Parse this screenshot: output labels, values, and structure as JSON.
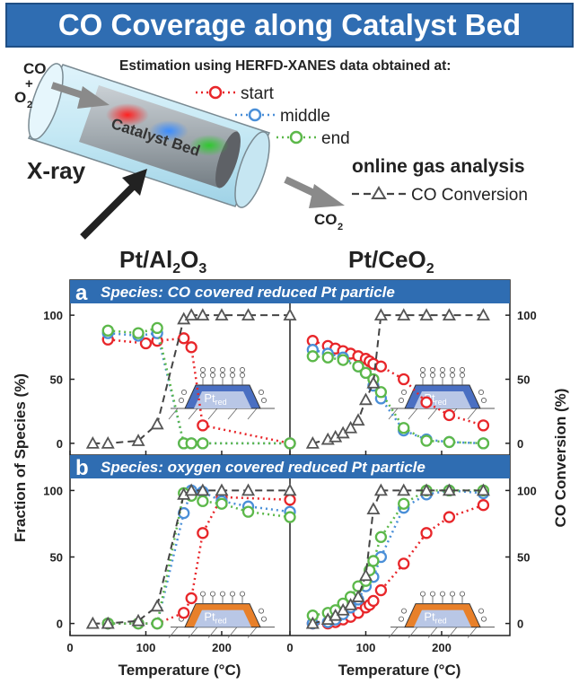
{
  "header": {
    "title": "CO Coverage along Catalyst Bed"
  },
  "schematic": {
    "estimation_text": "Estimation using HERFD-XANES data obtained at:",
    "legend_items": [
      "start",
      "middle",
      "end"
    ],
    "online_gas_analysis": "online gas analysis",
    "co_conversion_label": "CO Conversion",
    "catalyst_bed_label": "Catalyst Bed",
    "xray_label": "X-ray",
    "inlet_label_1": "CO",
    "inlet_label_2": "O",
    "inlet_label_2_sub": "2",
    "inlet_plus": "+",
    "outlet_label": "CO",
    "outlet_label_sub": "2"
  },
  "columns": {
    "left_title": {
      "main": "Pt/Al",
      "sub1": "2",
      "mid": "O",
      "sub2": "3"
    },
    "right_title": {
      "main": "Pt/CeO",
      "sub1": "2"
    }
  },
  "panels": {
    "a": {
      "letter": "a",
      "title": "Species: CO covered reduced Pt particle"
    },
    "b": {
      "letter": "b",
      "title": "Species: oxygen covered reduced Pt particle"
    }
  },
  "axes": {
    "ylabel_left": "Fraction of Species (%)",
    "ylabel_right": "CO Conversion (%)",
    "xlabel": "Temperature (°C)",
    "xticks": [
      "0",
      "100",
      "200"
    ],
    "yticks": [
      "0",
      "50",
      "100"
    ],
    "inset_label": "Pt",
    "inset_sub": "red"
  },
  "colors": {
    "start": "#e8262a",
    "middle": "#4a8fd8",
    "end": "#5cb84a",
    "conversion": "#444444",
    "banner": "#2f6db2",
    "inset_a": "#4a6fc2",
    "inset_b": "#e8802a"
  },
  "chart_data": [
    {
      "type": "line",
      "panel": "a",
      "catalyst": "Pt/Al2O3",
      "xlim": [
        0,
        290
      ],
      "ylim": [
        -5,
        105
      ],
      "series": [
        {
          "name": "start",
          "x": [
            50,
            100,
            115,
            150,
            160,
            175,
            290
          ],
          "y": [
            81,
            78,
            80,
            82,
            75,
            14,
            0
          ]
        },
        {
          "name": "middle",
          "x": [
            50,
            90,
            115,
            150,
            160,
            175,
            290
          ],
          "y": [
            86,
            84,
            86,
            0,
            0,
            0,
            0
          ]
        },
        {
          "name": "end",
          "x": [
            50,
            90,
            115,
            150,
            160,
            175,
            290
          ],
          "y": [
            88,
            86,
            90,
            0,
            0,
            0,
            0
          ]
        },
        {
          "name": "CO Conversion",
          "x": [
            30,
            50,
            90,
            115,
            150,
            160,
            175,
            200,
            235,
            290
          ],
          "y": [
            0,
            0,
            2,
            15,
            97,
            100,
            100,
            100,
            100,
            100
          ]
        }
      ]
    },
    {
      "type": "line",
      "panel": "a",
      "catalyst": "Pt/CeO2",
      "xlim": [
        0,
        290
      ],
      "ylim": [
        -5,
        105
      ],
      "series": [
        {
          "name": "start",
          "x": [
            30,
            50,
            60,
            70,
            80,
            90,
            100,
            105,
            110,
            120,
            150,
            180,
            210,
            255
          ],
          "y": [
            80,
            76,
            74,
            72,
            70,
            68,
            66,
            64,
            62,
            60,
            50,
            32,
            22,
            14
          ]
        },
        {
          "name": "middle",
          "x": [
            30,
            50,
            70,
            90,
            100,
            110,
            120,
            150,
            180,
            210,
            255
          ],
          "y": [
            73,
            70,
            67,
            60,
            55,
            45,
            35,
            10,
            3,
            1,
            0
          ]
        },
        {
          "name": "end",
          "x": [
            30,
            50,
            70,
            90,
            100,
            110,
            120,
            150,
            180,
            210,
            255
          ],
          "y": [
            68,
            67,
            65,
            60,
            55,
            50,
            40,
            12,
            2,
            1,
            0
          ]
        },
        {
          "name": "CO Conversion",
          "x": [
            30,
            50,
            60,
            70,
            80,
            90,
            100,
            110,
            120,
            150,
            180,
            210,
            255
          ],
          "y": [
            0,
            3,
            5,
            8,
            12,
            18,
            34,
            47,
            100,
            100,
            100,
            100,
            100
          ]
        }
      ]
    },
    {
      "type": "line",
      "panel": "b",
      "catalyst": "Pt/Al2O3",
      "xlim": [
        0,
        290
      ],
      "ylim": [
        -5,
        105
      ],
      "series": [
        {
          "name": "start",
          "x": [
            50,
            90,
            115,
            150,
            160,
            175,
            200,
            290
          ],
          "y": [
            0,
            0,
            0,
            8,
            19,
            68,
            95,
            93
          ]
        },
        {
          "name": "middle",
          "x": [
            50,
            90,
            115,
            150,
            160,
            175,
            200,
            235,
            290
          ],
          "y": [
            0,
            0,
            0,
            83,
            100,
            99,
            92,
            88,
            84
          ]
        },
        {
          "name": "end",
          "x": [
            50,
            90,
            115,
            150,
            160,
            175,
            200,
            235,
            290
          ],
          "y": [
            0,
            0,
            0,
            98,
            96,
            92,
            90,
            84,
            80
          ]
        },
        {
          "name": "CO Conversion",
          "x": [
            30,
            50,
            90,
            115,
            150,
            160,
            175,
            200,
            235,
            290
          ],
          "y": [
            0,
            0,
            2,
            13,
            97,
            100,
            100,
            100,
            100,
            100
          ]
        }
      ]
    },
    {
      "type": "line",
      "panel": "b",
      "catalyst": "Pt/CeO2",
      "xlim": [
        0,
        290
      ],
      "ylim": [
        -5,
        105
      ],
      "series": [
        {
          "name": "start",
          "x": [
            30,
            50,
            60,
            70,
            80,
            90,
            100,
            105,
            110,
            120,
            150,
            180,
            210,
            255
          ],
          "y": [
            0,
            0,
            1,
            3,
            5,
            8,
            12,
            14,
            17,
            25,
            45,
            68,
            80,
            89
          ]
        },
        {
          "name": "middle",
          "x": [
            30,
            50,
            60,
            70,
            80,
            90,
            100,
            110,
            120,
            150,
            180,
            210,
            255
          ],
          "y": [
            0,
            1,
            3,
            7,
            12,
            18,
            28,
            35,
            50,
            87,
            97,
            100,
            98
          ]
        },
        {
          "name": "end",
          "x": [
            30,
            50,
            60,
            70,
            80,
            90,
            100,
            105,
            110,
            120,
            150,
            180,
            210,
            255
          ],
          "y": [
            6,
            8,
            10,
            15,
            20,
            28,
            32,
            40,
            47,
            65,
            90,
            100,
            100,
            100
          ]
        },
        {
          "name": "CO Conversion",
          "x": [
            30,
            50,
            60,
            70,
            80,
            90,
            100,
            110,
            120,
            150,
            180,
            210,
            255
          ],
          "y": [
            0,
            3,
            6,
            10,
            14,
            20,
            36,
            86,
            100,
            100,
            100,
            100,
            100
          ]
        }
      ]
    }
  ]
}
